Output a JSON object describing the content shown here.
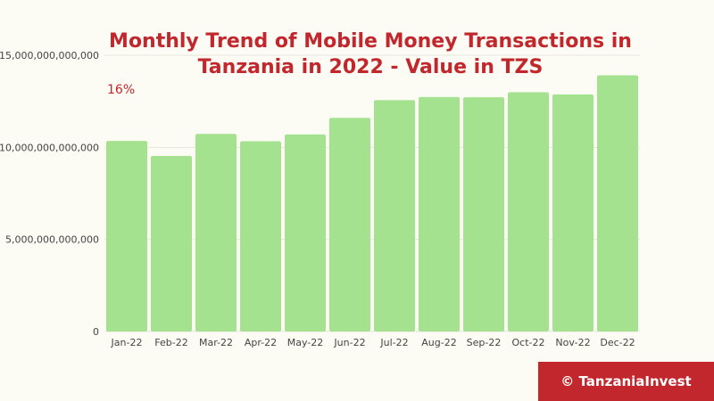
{
  "chart_data": {
    "type": "bar",
    "title_line1": "Monthly Trend of Mobile Money Transactions in",
    "title_line2": "Tanzania in 2022 - Value in TZS",
    "annotation": "16%",
    "categories": [
      "Jan-22",
      "Feb-22",
      "Mar-22",
      "Apr-22",
      "May-22",
      "Jun-22",
      "Jul-22",
      "Aug-22",
      "Sep-22",
      "Oct-22",
      "Nov-22",
      "Dec-22"
    ],
    "values": [
      10350000000000,
      9530000000000,
      10730000000000,
      10330000000000,
      10700000000000,
      11600000000000,
      12560000000000,
      12730000000000,
      12720000000000,
      12990000000000,
      12870000000000,
      13910000000000
    ],
    "ylim": [
      0,
      15000000000000
    ],
    "y_ticks": [
      0,
      5000000000000,
      10000000000000,
      15000000000000
    ],
    "y_tick_labels": [
      "0",
      "5,000,000,000,000",
      "10,000,000,000,000",
      "15,000,000,000,000"
    ],
    "xlabel": "",
    "ylabel": "",
    "grid": true,
    "legend": "none"
  },
  "brand": {
    "label": "© TanzaniaInvest"
  },
  "colors": {
    "bar": "#a5e28f",
    "title": "#c1272d",
    "brand_bg": "#c1272d",
    "background": "#fcfcf4"
  }
}
